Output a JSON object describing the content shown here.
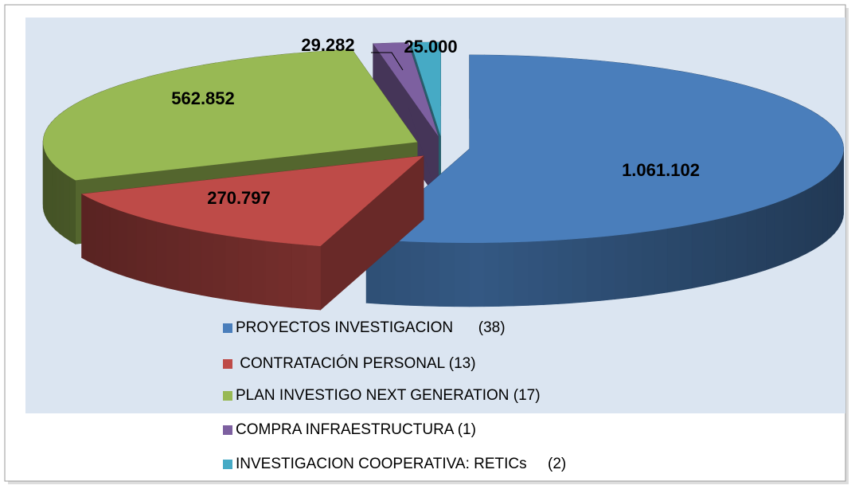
{
  "chart_data": {
    "type": "pie3d",
    "categories": [
      "PROYECTOS INVESTIGACION      (38)",
      " CONTRATACIÓN PERSONAL (13)",
      "PLAN INVESTIGO NEXT GENERATION (17)",
      "COMPRA INFRAESTRUCTURA (1)",
      "INVESTIGACION COOPERATIVA: RETICs     (2)"
    ],
    "values": [
      1061102,
      270797,
      562852,
      29282,
      25000
    ],
    "value_labels": [
      "1.061.102",
      "270.797",
      "562.852",
      "29.282",
      "25.000"
    ],
    "colors": [
      "#4a7ebb",
      "#be4b48",
      "#98b954",
      "#7d60a0",
      "#46aac5"
    ],
    "legend": "bottom"
  }
}
